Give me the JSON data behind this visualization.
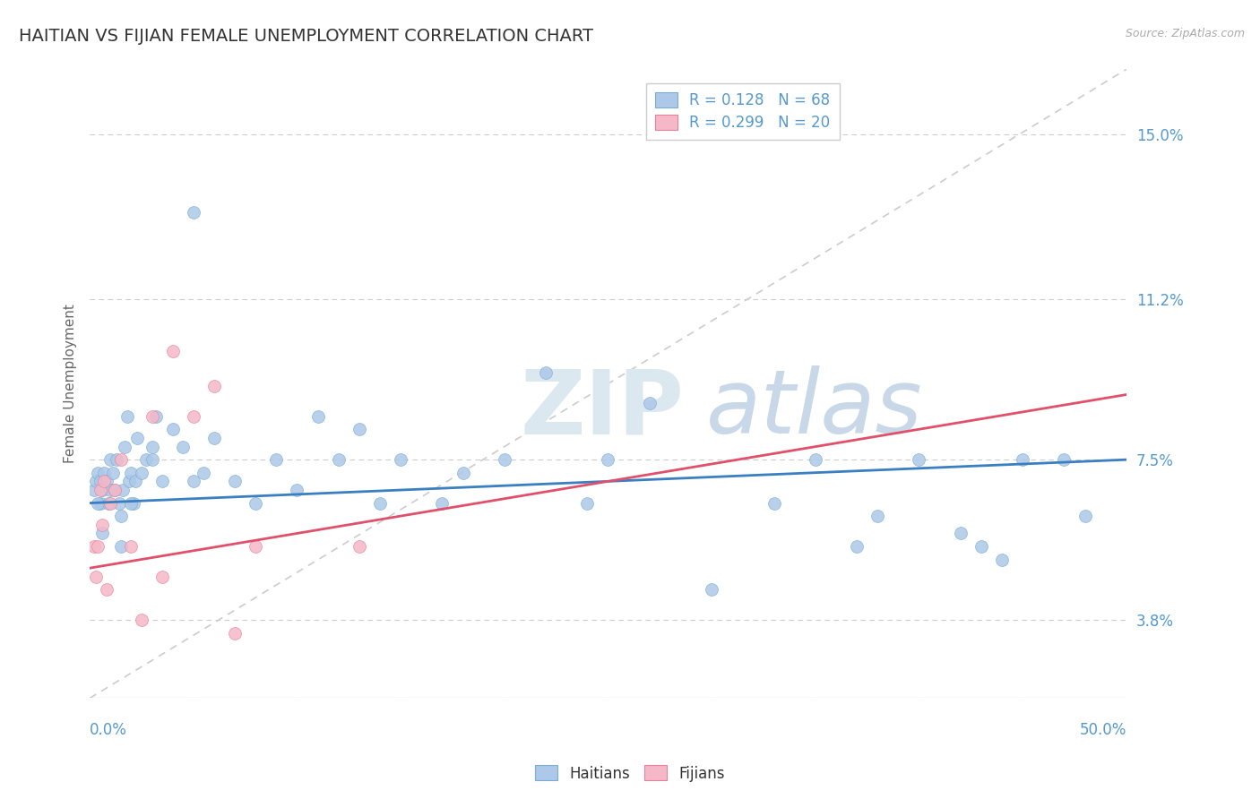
{
  "title": "HAITIAN VS FIJIAN FEMALE UNEMPLOYMENT CORRELATION CHART",
  "source": "Source: ZipAtlas.com",
  "ylabel": "Female Unemployment",
  "ytick_labels": [
    "3.8%",
    "7.5%",
    "11.2%",
    "15.0%"
  ],
  "ytick_vals": [
    3.8,
    7.5,
    11.2,
    15.0
  ],
  "xlim": [
    0.0,
    50.0
  ],
  "ylim": [
    2.0,
    16.5
  ],
  "haitian_R": 0.128,
  "haitian_N": 68,
  "fijian_R": 0.299,
  "fijian_N": 20,
  "haitian_color": "#adc8e8",
  "fijian_color": "#f5b8c8",
  "haitian_edge_color": "#7aadd4",
  "fijian_edge_color": "#e88099",
  "haitian_trend_color": "#3a7fc1",
  "fijian_trend_color": "#e0506a",
  "ytick_color": "#5599cc",
  "xtick_color": "#5599cc",
  "title_color": "#333333",
  "source_color": "#aaaaaa",
  "background_color": "#ffffff",
  "grid_color": "#cccccc",
  "diag_color": "#cccccc",
  "watermark_zip_color": "#dce8f0",
  "watermark_atlas_color": "#c8d8e8",
  "haitian_x": [
    0.2,
    0.3,
    0.4,
    0.5,
    0.5,
    0.6,
    0.7,
    0.8,
    0.9,
    1.0,
    1.0,
    1.1,
    1.2,
    1.3,
    1.4,
    1.5,
    1.6,
    1.7,
    1.8,
    1.9,
    2.0,
    2.1,
    2.2,
    2.3,
    2.5,
    2.7,
    3.0,
    3.2,
    3.5,
    4.0,
    4.5,
    5.0,
    5.5,
    6.0,
    7.0,
    8.0,
    9.0,
    10.0,
    11.0,
    12.0,
    13.0,
    14.0,
    15.0,
    17.0,
    18.0,
    20.0,
    22.0,
    24.0,
    25.0,
    27.0,
    30.0,
    33.0,
    35.0,
    37.0,
    38.0,
    40.0,
    42.0,
    43.0,
    44.0,
    45.0,
    47.0,
    48.0,
    0.4,
    0.6,
    1.5,
    2.0,
    3.0,
    5.0
  ],
  "haitian_y": [
    6.8,
    7.0,
    7.2,
    6.5,
    7.0,
    6.8,
    7.2,
    7.0,
    6.5,
    6.8,
    7.5,
    7.2,
    6.8,
    7.5,
    6.5,
    6.2,
    6.8,
    7.8,
    8.5,
    7.0,
    7.2,
    6.5,
    7.0,
    8.0,
    7.2,
    7.5,
    7.8,
    8.5,
    7.0,
    8.2,
    7.8,
    7.0,
    7.2,
    8.0,
    7.0,
    6.5,
    7.5,
    6.8,
    8.5,
    7.5,
    8.2,
    6.5,
    7.5,
    6.5,
    7.2,
    7.5,
    9.5,
    6.5,
    7.5,
    8.8,
    4.5,
    6.5,
    7.5,
    5.5,
    6.2,
    7.5,
    5.8,
    5.5,
    5.2,
    7.5,
    7.5,
    6.2,
    6.5,
    5.8,
    5.5,
    6.5,
    7.5,
    13.2
  ],
  "fijian_x": [
    0.2,
    0.3,
    0.4,
    0.5,
    0.6,
    0.7,
    0.8,
    1.0,
    1.2,
    1.5,
    2.0,
    2.5,
    3.0,
    3.5,
    4.0,
    5.0,
    6.0,
    7.0,
    8.0,
    13.0
  ],
  "fijian_y": [
    5.5,
    4.8,
    5.5,
    6.8,
    6.0,
    7.0,
    4.5,
    6.5,
    6.8,
    7.5,
    5.5,
    3.8,
    8.5,
    4.8,
    10.0,
    8.5,
    9.2,
    3.5,
    5.5,
    5.5
  ],
  "haitian_trend_x0": 0.0,
  "haitian_trend_x1": 50.0,
  "haitian_trend_y0": 6.5,
  "haitian_trend_y1": 7.5,
  "fijian_trend_x0": 0.0,
  "fijian_trend_x1": 50.0,
  "fijian_trend_y0": 5.0,
  "fijian_trend_y1": 9.0
}
